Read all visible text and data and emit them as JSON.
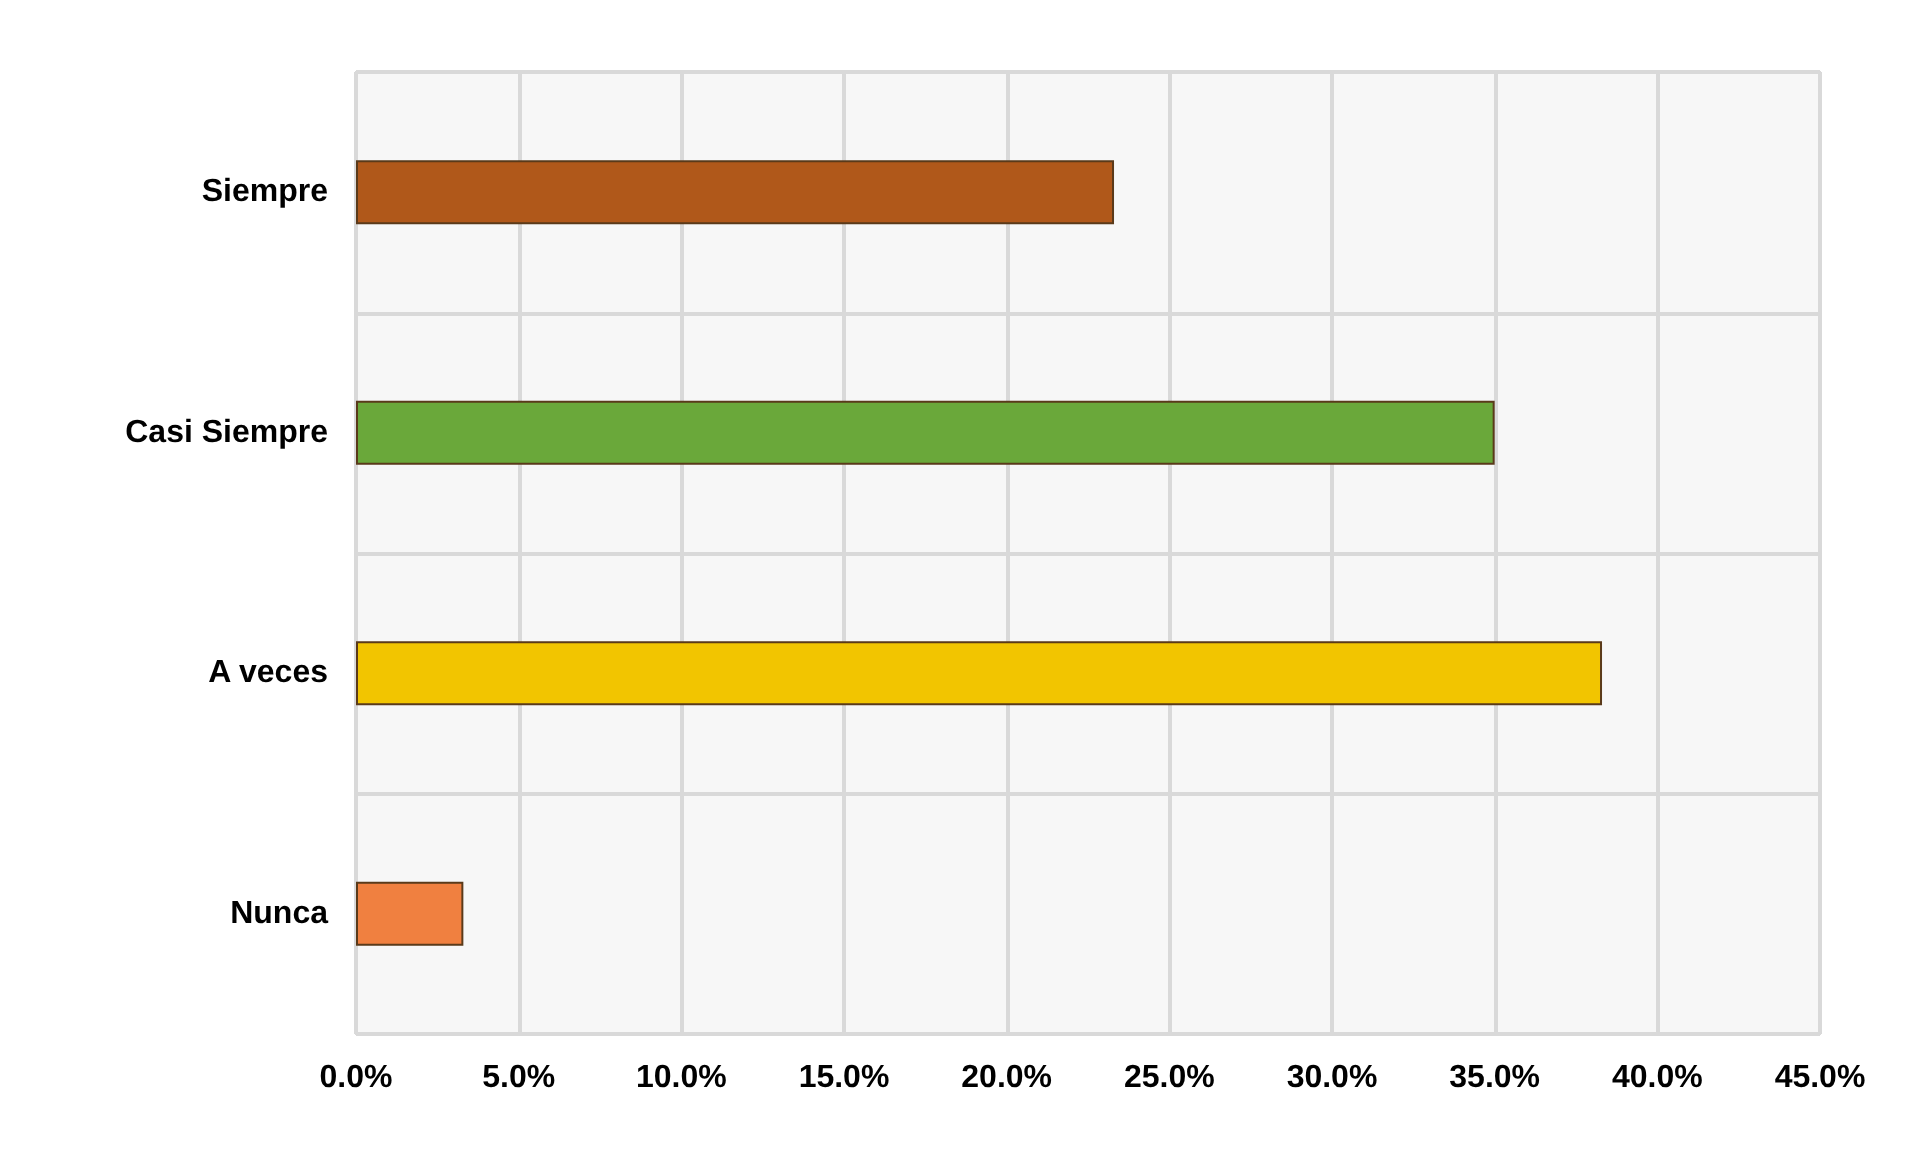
{
  "chart_data": {
    "type": "bar",
    "orientation": "horizontal",
    "categories": [
      "Siempre",
      "Casi Siempre",
      "A veces",
      "Nunca"
    ],
    "values": [
      23.3,
      35.0,
      38.3,
      3.3
    ],
    "colors": [
      "#b0581a",
      "#6aa83a",
      "#f2c500",
      "#f08040"
    ],
    "xlim": [
      0,
      45
    ],
    "xticks": [
      {
        "value": 0,
        "label": "0.0%"
      },
      {
        "value": 5,
        "label": "5.0%"
      },
      {
        "value": 10,
        "label": "10.0%"
      },
      {
        "value": 15,
        "label": "15.0%"
      },
      {
        "value": 20,
        "label": "20.0%"
      },
      {
        "value": 25,
        "label": "25.0%"
      },
      {
        "value": 30,
        "label": "30.0%"
      },
      {
        "value": 35,
        "label": "35.0%"
      },
      {
        "value": 40,
        "label": "40.0%"
      },
      {
        "value": 45,
        "label": "45.0%"
      }
    ],
    "grid": true
  }
}
